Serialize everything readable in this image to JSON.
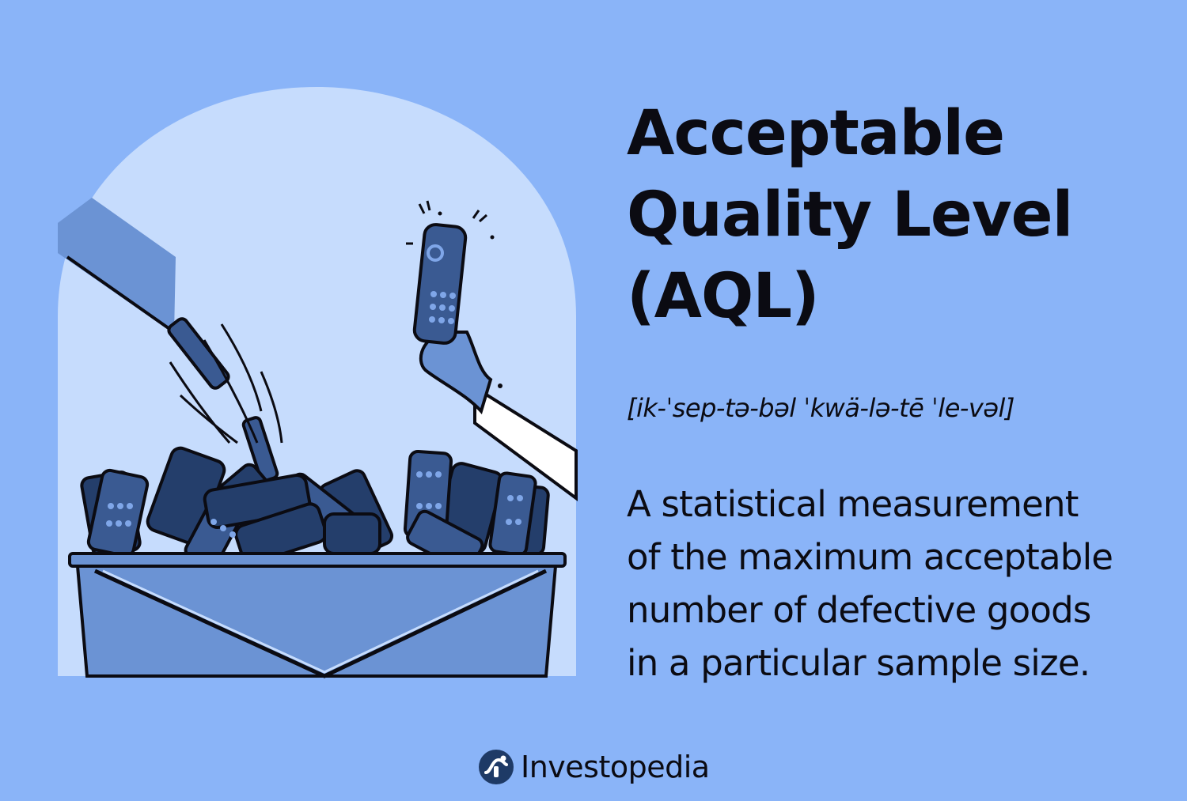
{
  "title": {
    "lines": [
      "Acceptable",
      "Quality Level",
      "(AQL)"
    ]
  },
  "pronunciation": "[ik-ˈsep-tə-bəl ˈkwä-lə-tē ˈle-vəl]",
  "definition": {
    "lines": [
      "A statistical measurement",
      "of the maximum acceptable",
      "number of defective goods",
      "in a particular sample size."
    ]
  },
  "brand": {
    "name": "Investopedia",
    "logo_icon": "investopedia-logo-icon"
  },
  "illustration": {
    "subject": "bin-of-rejected-remote-controls",
    "icons": [
      "chute",
      "falling-remote-icon",
      "hand-holding-remote-icon",
      "bin-icon"
    ]
  },
  "colors": {
    "background": "#8ab4f8",
    "arch": "#c6dcfd",
    "remote_dark": "#243e6b",
    "remote_mid": "#3a5a92",
    "bin_blue": "#6b93d4",
    "ink": "#0b0b12"
  }
}
